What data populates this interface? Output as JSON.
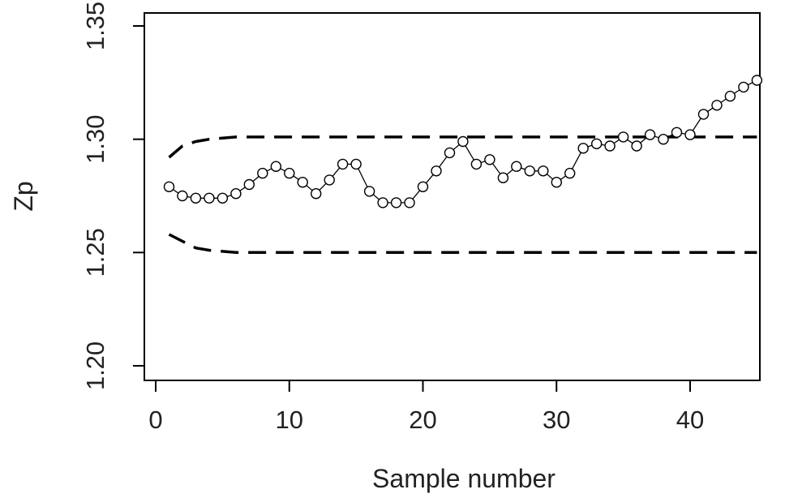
{
  "chart_data": {
    "type": "line",
    "title": "",
    "xlabel": "Sample number",
    "ylabel": "Zp",
    "xlim": [
      0,
      46
    ],
    "ylim": [
      1.195,
      1.357
    ],
    "xticks": [
      0,
      10,
      20,
      30,
      40
    ],
    "xtick_labels": [
      "0",
      "10",
      "20",
      "30",
      "40"
    ],
    "yticks": [
      1.2,
      1.25,
      1.3,
      1.35
    ],
    "ytick_labels": [
      "1.20",
      "1.25",
      "1.30",
      "1.35"
    ],
    "grid": false,
    "colors": {
      "series": "#000000",
      "axis": "#000000"
    },
    "series": [
      {
        "role": "observed",
        "style": "solid line with open circle markers",
        "x": [
          1,
          2,
          3,
          4,
          5,
          6,
          7,
          8,
          9,
          10,
          11,
          12,
          13,
          14,
          15,
          16,
          17,
          18,
          19,
          20,
          21,
          22,
          23,
          24,
          25,
          26,
          27,
          28,
          29,
          30,
          31,
          32,
          33,
          34,
          35,
          36,
          37,
          38,
          39,
          40,
          41,
          42,
          43,
          44,
          45
        ],
        "y": [
          1.279,
          1.275,
          1.274,
          1.274,
          1.274,
          1.276,
          1.28,
          1.285,
          1.288,
          1.285,
          1.281,
          1.276,
          1.282,
          1.289,
          1.289,
          1.277,
          1.272,
          1.272,
          1.272,
          1.279,
          1.286,
          1.294,
          1.299,
          1.289,
          1.291,
          1.283,
          1.288,
          1.286,
          1.286,
          1.281,
          1.285,
          1.296,
          1.298,
          1.297,
          1.301,
          1.297,
          1.302,
          1.3,
          1.303,
          1.302,
          1.311,
          1.315,
          1.319,
          1.323,
          1.326
        ]
      },
      {
        "role": "upper control limit",
        "style": "dashed",
        "x": [
          1,
          2,
          3,
          4,
          5,
          6,
          8,
          10,
          15,
          20,
          25,
          30,
          35,
          40,
          45
        ],
        "y": [
          1.292,
          1.297,
          1.299,
          1.3,
          1.3005,
          1.301,
          1.301,
          1.301,
          1.301,
          1.301,
          1.301,
          1.301,
          1.301,
          1.301,
          1.301
        ]
      },
      {
        "role": "lower control limit",
        "style": "dashed",
        "x": [
          1,
          2,
          3,
          4,
          5,
          6,
          8,
          10,
          15,
          20,
          25,
          30,
          35,
          40,
          45
        ],
        "y": [
          1.258,
          1.255,
          1.252,
          1.251,
          1.2505,
          1.25,
          1.25,
          1.25,
          1.25,
          1.25,
          1.25,
          1.25,
          1.25,
          1.25,
          1.25
        ]
      }
    ]
  }
}
